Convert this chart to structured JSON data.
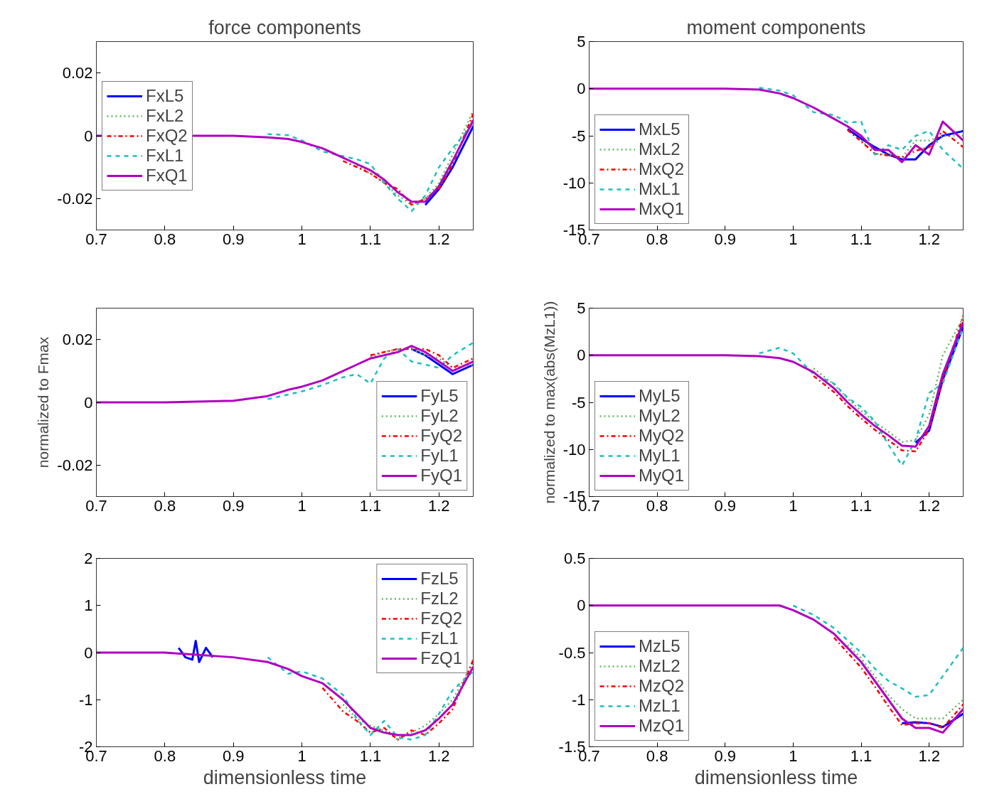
{
  "chart_data": [
    {
      "type": "line",
      "title": "force components",
      "xlim": [
        0.7,
        1.25
      ],
      "xticks": [
        0.7,
        0.8,
        0.9,
        1,
        1.1,
        1.2
      ],
      "ylim": [
        -0.03,
        0.03
      ],
      "yticks": [
        -0.02,
        0,
        0.02
      ],
      "legend": "left",
      "grid": false,
      "x": [
        0.95,
        0.98,
        1.0,
        1.03,
        1.06,
        1.08,
        1.1,
        1.12,
        1.14,
        1.16,
        1.18,
        1.2,
        1.22,
        1.25
      ],
      "series": [
        {
          "name": "FxL5",
          "color": "#0000ff",
          "line_style": "solid",
          "values": [
            null,
            null,
            null,
            null,
            null,
            null,
            null,
            null,
            null,
            null,
            -0.022,
            -0.017,
            -0.01,
            0.003
          ]
        },
        {
          "name": "FxL2",
          "color": "#5fb85f",
          "line_style": "dotted",
          "values": [
            null,
            null,
            null,
            null,
            null,
            -0.0095,
            -0.012,
            -0.015,
            -0.019,
            -0.022,
            -0.02,
            -0.015,
            -0.006,
            0.008
          ]
        },
        {
          "name": "FxQ2",
          "color": "#ff0000",
          "line_style": "dashdot",
          "values": [
            null,
            null,
            null,
            null,
            -0.008,
            -0.01,
            -0.012,
            -0.015,
            -0.017,
            -0.022,
            -0.02,
            -0.017,
            -0.009,
            0.007
          ]
        },
        {
          "name": "FxL1",
          "color": "#1fbfbf",
          "line_style": "dashed",
          "values": [
            0.0005,
            0.0002,
            -0.0015,
            -0.005,
            -0.0065,
            -0.0075,
            -0.009,
            -0.015,
            -0.02,
            -0.024,
            -0.019,
            -0.01,
            -0.004,
            0.004
          ]
        },
        {
          "name": "FxQ1",
          "color": "#b000c0",
          "line_style": "solid",
          "x": [
            0.7,
            0.9,
            0.95,
            0.98,
            1.0,
            1.03,
            1.06,
            1.08,
            1.1,
            1.12,
            1.14,
            1.16,
            1.18,
            1.2,
            1.22,
            1.25
          ],
          "values": [
            0,
            0,
            -0.0005,
            -0.001,
            -0.002,
            -0.004,
            -0.007,
            -0.009,
            -0.011,
            -0.014,
            -0.018,
            -0.021,
            -0.021,
            -0.016,
            -0.008,
            0.005
          ]
        }
      ]
    },
    {
      "type": "line",
      "title": "moment components",
      "xlim": [
        0.7,
        1.25
      ],
      "xticks": [
        0.7,
        0.8,
        0.9,
        1,
        1.1,
        1.2
      ],
      "ylim": [
        -15,
        5
      ],
      "yticks": [
        -15,
        -10,
        -5,
        0,
        5
      ],
      "legend": "bottom left",
      "grid": false,
      "x": [
        0.7,
        0.8,
        0.9,
        0.95,
        0.98,
        1.0,
        1.03,
        1.06,
        1.08,
        1.1,
        1.12,
        1.14,
        1.16,
        1.18,
        1.2,
        1.22,
        1.25
      ],
      "series": [
        {
          "name": "MxL5",
          "color": "#0000ff",
          "line_style": "solid",
          "values": [
            null,
            null,
            null,
            null,
            null,
            null,
            null,
            null,
            -4.3,
            -5.3,
            -6.2,
            -7,
            -7.5,
            -7.5,
            -6,
            -5,
            -4.5
          ]
        },
        {
          "name": "MxL2",
          "color": "#5fb85f",
          "line_style": "dotted",
          "values": [
            null,
            null,
            null,
            null,
            null,
            null,
            null,
            null,
            null,
            -5.5,
            -6.9,
            -7,
            -7.3,
            -5.5,
            -5.5,
            -5,
            -5
          ]
        },
        {
          "name": "MxQ2",
          "color": "#ff0000",
          "line_style": "dashdot",
          "values": [
            null,
            null,
            null,
            null,
            null,
            null,
            null,
            null,
            -4.4,
            -5.6,
            -6.9,
            -7.1,
            -7.3,
            -6.6,
            -6.2,
            -4.5,
            -6.2
          ]
        },
        {
          "name": "MxL1",
          "color": "#1fbfbf",
          "line_style": "dashed",
          "values": [
            null,
            null,
            null,
            0.1,
            -0.2,
            -0.7,
            -2.5,
            -2.8,
            -3.6,
            -3.5,
            -7,
            -6,
            -6.5,
            -5,
            -4.5,
            -6.5,
            -8.5
          ]
        },
        {
          "name": "MxQ1",
          "color": "#b000c0",
          "line_style": "solid",
          "values": [
            0,
            0,
            0,
            -0.1,
            -0.5,
            -1,
            -2,
            -3.2,
            -4,
            -5,
            -6.5,
            -6.5,
            -7.8,
            -6,
            -7,
            -3.5,
            -5.5
          ]
        }
      ]
    },
    {
      "type": "line",
      "ylabel": "normalized to Fmax",
      "xlim": [
        0.7,
        1.25
      ],
      "xticks": [
        0.7,
        0.8,
        0.9,
        1,
        1.1,
        1.2
      ],
      "ylim": [
        -0.03,
        0.03
      ],
      "yticks": [
        -0.02,
        0,
        0.02
      ],
      "legend": "bottom right",
      "grid": false,
      "x": [
        0.7,
        0.8,
        0.9,
        0.95,
        0.98,
        1.0,
        1.03,
        1.06,
        1.08,
        1.1,
        1.12,
        1.14,
        1.16,
        1.18,
        1.2,
        1.22,
        1.25
      ],
      "series": [
        {
          "name": "FyL5",
          "color": "#0000ff",
          "line_style": "solid",
          "values": [
            null,
            null,
            null,
            null,
            null,
            null,
            null,
            null,
            null,
            null,
            null,
            null,
            0.017,
            0.015,
            0.012,
            0.009,
            0.012
          ]
        },
        {
          "name": "FyL2",
          "color": "#5fb85f",
          "line_style": "dotted",
          "values": [
            null,
            null,
            null,
            null,
            null,
            null,
            null,
            null,
            null,
            0.0145,
            0.016,
            0.017,
            0.017,
            0.015,
            0.014,
            0.011,
            0.012
          ]
        },
        {
          "name": "FyQ2",
          "color": "#ff0000",
          "line_style": "dashdot",
          "values": [
            null,
            null,
            null,
            null,
            null,
            null,
            null,
            null,
            null,
            0.015,
            0.016,
            0.017,
            0.017,
            0.017,
            0.015,
            0.011,
            0.014
          ]
        },
        {
          "name": "FyL1",
          "color": "#1fbfbf",
          "line_style": "dashed",
          "values": [
            null,
            null,
            null,
            0.001,
            0.0025,
            0.0035,
            0.0055,
            0.008,
            0.009,
            0.006,
            0.014,
            0.017,
            0.013,
            0.012,
            0.011,
            0.015,
            0.019
          ]
        },
        {
          "name": "FyQ1",
          "color": "#b000c0",
          "line_style": "solid",
          "values": [
            0,
            0,
            0.0005,
            0.002,
            0.004,
            0.005,
            0.007,
            0.01,
            0.012,
            0.014,
            0.015,
            0.016,
            0.018,
            0.016,
            0.013,
            0.01,
            0.013
          ]
        }
      ]
    },
    {
      "type": "line",
      "ylabel": "normalized to max(abs(MzL1))",
      "xlim": [
        0.7,
        1.25
      ],
      "xticks": [
        0.7,
        0.8,
        0.9,
        1,
        1.1,
        1.2
      ],
      "ylim": [
        -15,
        5
      ],
      "yticks": [
        -15,
        -10,
        -5,
        0,
        5
      ],
      "legend": "bottom left",
      "grid": false,
      "x": [
        0.7,
        0.8,
        0.9,
        0.95,
        0.98,
        1.0,
        1.03,
        1.06,
        1.08,
        1.1,
        1.12,
        1.14,
        1.16,
        1.18,
        1.2,
        1.22,
        1.25
      ],
      "series": [
        {
          "name": "MyL5",
          "color": "#0000ff",
          "line_style": "solid",
          "values": [
            null,
            null,
            null,
            null,
            null,
            null,
            null,
            null,
            null,
            null,
            null,
            null,
            null,
            -9.3,
            -8,
            -2.6,
            3
          ]
        },
        {
          "name": "MyL2",
          "color": "#5fb85f",
          "line_style": "dotted",
          "values": [
            null,
            null,
            null,
            null,
            null,
            null,
            -1.4,
            -3.1,
            -4.6,
            -5.9,
            -7.1,
            -8.1,
            -9.2,
            -9,
            -6.3,
            0,
            4
          ]
        },
        {
          "name": "MyQ2",
          "color": "#ff0000",
          "line_style": "dashdot",
          "values": [
            null,
            null,
            null,
            null,
            null,
            null,
            -2.2,
            -3.9,
            -5.4,
            -6.7,
            -7.9,
            -9,
            -10.1,
            -10.2,
            -7.9,
            -2.6,
            4.2
          ]
        },
        {
          "name": "MyL1",
          "color": "#1fbfbf",
          "line_style": "dashed",
          "values": [
            null,
            null,
            null,
            0.2,
            0.8,
            0.2,
            -2,
            -3,
            -4.5,
            -5.5,
            -7,
            -9.5,
            -11.7,
            -9,
            -4,
            -3,
            3
          ]
        },
        {
          "name": "MyQ1",
          "color": "#b000c0",
          "line_style": "solid",
          "values": [
            0,
            0,
            0,
            -0.1,
            -0.3,
            -0.7,
            -1.8,
            -3.5,
            -5,
            -6.3,
            -7.5,
            -8.5,
            -9.6,
            -9.7,
            -7.5,
            -2,
            3.5
          ]
        }
      ]
    },
    {
      "type": "line",
      "xlabel": "dimensionless time",
      "xlim": [
        0.7,
        1.25
      ],
      "xticks": [
        0.7,
        0.8,
        0.9,
        1,
        1.1,
        1.2
      ],
      "ylim": [
        -2,
        2
      ],
      "yticks": [
        -2,
        -1,
        0,
        1,
        2
      ],
      "legend": "top right",
      "grid": false,
      "x": [
        0.7,
        0.8,
        0.9,
        0.95,
        0.98,
        1.0,
        1.03,
        1.06,
        1.08,
        1.1,
        1.12,
        1.14,
        1.16,
        1.18,
        1.2,
        1.22,
        1.25
      ],
      "series": [
        {
          "name": "FzL5",
          "color": "#0000ff",
          "line_style": "solid",
          "x": [
            0.82,
            0.83,
            0.84,
            0.845,
            0.85,
            0.86,
            0.87
          ],
          "values": [
            0.1,
            -0.1,
            -0.15,
            0.25,
            -0.2,
            0.1,
            -0.1
          ]
        },
        {
          "name": "FzL2",
          "color": "#5fb85f",
          "line_style": "dotted",
          "values": [
            null,
            null,
            null,
            null,
            null,
            null,
            null,
            -1.1,
            -1.4,
            -1.55,
            -1.65,
            -1.85,
            -1.7,
            -1.55,
            -1.3,
            -1,
            -0.2
          ]
        },
        {
          "name": "FzQ2",
          "color": "#ff0000",
          "line_style": "dashdot",
          "values": [
            null,
            null,
            null,
            null,
            null,
            null,
            -0.75,
            -1.25,
            -1.45,
            -1.7,
            -1.6,
            -1.85,
            -1.65,
            -1.75,
            -1.5,
            -1.2,
            -0.15
          ]
        },
        {
          "name": "FzL1",
          "color": "#1fbfbf",
          "line_style": "dashed",
          "values": [
            null,
            null,
            null,
            -0.1,
            -0.45,
            -0.4,
            -0.55,
            -0.9,
            -1.4,
            -1.75,
            -1.45,
            -1.8,
            -1.85,
            -1.75,
            -1.3,
            -0.8,
            -0.4
          ]
        },
        {
          "name": "FzQ1",
          "color": "#b000c0",
          "line_style": "solid",
          "values": [
            0,
            0,
            -0.1,
            -0.2,
            -0.35,
            -0.5,
            -0.65,
            -1,
            -1.3,
            -1.6,
            -1.7,
            -1.75,
            -1.75,
            -1.65,
            -1.4,
            -1.1,
            -0.3
          ]
        }
      ]
    },
    {
      "type": "line",
      "xlabel": "dimensionless time",
      "xlim": [
        0.7,
        1.25
      ],
      "xticks": [
        0.7,
        0.8,
        0.9,
        1,
        1.1,
        1.2
      ],
      "ylim": [
        -1.5,
        0.5
      ],
      "yticks": [
        -1.5,
        -1,
        -0.5,
        0,
        0.5
      ],
      "legend": "bottom left",
      "grid": false,
      "x": [
        0.7,
        0.8,
        0.9,
        0.95,
        0.98,
        1.0,
        1.03,
        1.06,
        1.08,
        1.1,
        1.12,
        1.14,
        1.16,
        1.18,
        1.2,
        1.22,
        1.25
      ],
      "series": [
        {
          "name": "MzL5",
          "color": "#0000ff",
          "line_style": "solid",
          "values": [
            null,
            null,
            null,
            null,
            null,
            null,
            null,
            null,
            null,
            null,
            null,
            null,
            -1.25,
            -1.24,
            -1.25,
            -1.29,
            -1.15
          ]
        },
        {
          "name": "MzL2",
          "color": "#5fb85f",
          "line_style": "dotted",
          "values": [
            null,
            null,
            null,
            null,
            null,
            null,
            null,
            null,
            -0.42,
            -0.56,
            -0.75,
            -0.95,
            -1.1,
            -1.2,
            -1.2,
            -1.2,
            -1
          ]
        },
        {
          "name": "MzQ2",
          "color": "#ff0000",
          "line_style": "dashdot",
          "values": [
            null,
            null,
            null,
            null,
            null,
            null,
            null,
            -0.34,
            -0.5,
            -0.66,
            -0.86,
            -1.07,
            -1.27,
            -1.25,
            -1.25,
            -1.3,
            -1.05
          ]
        },
        {
          "name": "MzL1",
          "color": "#1fbfbf",
          "line_style": "dashed",
          "values": [
            null,
            null,
            null,
            null,
            null,
            0,
            -0.1,
            -0.24,
            -0.37,
            -0.5,
            -0.67,
            -0.8,
            -0.88,
            -0.97,
            -0.95,
            -0.75,
            -0.45
          ]
        },
        {
          "name": "MzQ1",
          "color": "#b000c0",
          "line_style": "solid",
          "values": [
            0,
            0,
            0,
            0,
            0,
            -0.05,
            -0.15,
            -0.3,
            -0.45,
            -0.6,
            -0.8,
            -1,
            -1.2,
            -1.3,
            -1.3,
            -1.35,
            -1.1
          ]
        }
      ]
    }
  ]
}
